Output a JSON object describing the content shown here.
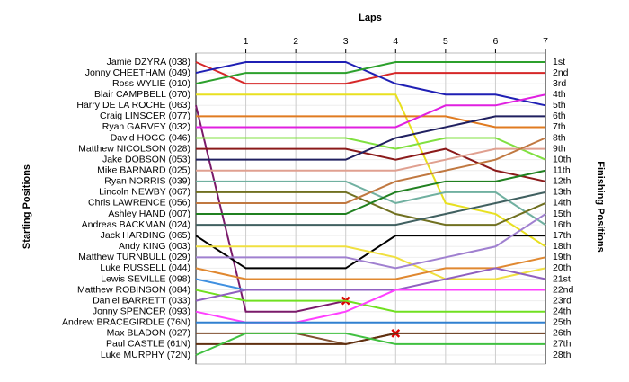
{
  "chart_data": {
    "type": "line",
    "title": "Laps",
    "y_label_left": "Starting Positions",
    "y_label_right": "Finishing Positions",
    "x": [
      0,
      1,
      2,
      3,
      4,
      5,
      6,
      7
    ],
    "xlim": [
      0,
      7
    ],
    "xticks": [
      1,
      2,
      3,
      4,
      5,
      6,
      7
    ],
    "ylim": [
      1,
      28
    ],
    "invert_y": true,
    "grid": true,
    "finish_labels": [
      "1st",
      "2nd",
      "3rd",
      "4th",
      "5th",
      "6th",
      "7th",
      "8th",
      "9th",
      "10th",
      "11th",
      "12th",
      "13th",
      "14th",
      "15th",
      "16th",
      "17th",
      "18th",
      "19th",
      "20th",
      "21st",
      "22nd",
      "23rd",
      "24th",
      "25th",
      "26th",
      "27th",
      "28th"
    ],
    "series": [
      {
        "name": "Jamie DZYRA (038)",
        "color": "#d62728",
        "values": [
          1,
          3,
          3,
          3,
          2,
          2,
          2,
          2
        ]
      },
      {
        "name": "Jonny CHEETHAM (049)",
        "color": "#1f1fb4",
        "values": [
          2,
          1,
          1,
          1,
          3,
          4,
          4,
          5
        ]
      },
      {
        "name": "Ross WYLIE (010)",
        "color": "#2ca02c",
        "values": [
          3,
          2,
          2,
          2,
          1,
          1,
          1,
          1
        ]
      },
      {
        "name": "Blair CAMPBELL (070)",
        "color": "#e8e020",
        "values": [
          4,
          4,
          4,
          4,
          4,
          14,
          15,
          18
        ]
      },
      {
        "name": "Harry DE LA ROCHE (063)",
        "color": "#7a1a6a",
        "values": [
          5,
          24,
          24,
          23,
          null,
          null,
          null,
          null
        ]
      },
      {
        "name": "Craig LINSCER (077)",
        "color": "#e07b20",
        "values": [
          6,
          6,
          6,
          6,
          6,
          6,
          7,
          7
        ]
      },
      {
        "name": "Ryan GARVEY (032)",
        "color": "#e020e0",
        "values": [
          7,
          7,
          7,
          7,
          7,
          5,
          5,
          4
        ]
      },
      {
        "name": "David HOGG (046)",
        "color": "#80e040",
        "values": [
          8,
          8,
          8,
          8,
          9,
          8,
          8,
          10
        ]
      },
      {
        "name": "Matthew NICOLSON (028)",
        "color": "#8b1a1a",
        "values": [
          9,
          9,
          9,
          9,
          10,
          9,
          11,
          12
        ]
      },
      {
        "name": "Jake DOBSON (053)",
        "color": "#202060",
        "values": [
          10,
          10,
          10,
          10,
          8,
          7,
          6,
          6
        ]
      },
      {
        "name": "Mike BARNARD (025)",
        "color": "#e0a090",
        "values": [
          11,
          11,
          11,
          11,
          11,
          10,
          9,
          9
        ]
      },
      {
        "name": "Ryan NORRIS (039)",
        "color": "#70b0a0",
        "values": [
          12,
          12,
          12,
          12,
          14,
          13,
          13,
          16
        ]
      },
      {
        "name": "Lincoln NEWBY (067)",
        "color": "#707020",
        "values": [
          13,
          13,
          13,
          13,
          15,
          16,
          16,
          14
        ]
      },
      {
        "name": "Chris LAWRENCE (056)",
        "color": "#c07840",
        "values": [
          14,
          14,
          14,
          14,
          12,
          11,
          10,
          8
        ]
      },
      {
        "name": "Ashley HAND (007)",
        "color": "#208020",
        "values": [
          15,
          15,
          15,
          15,
          13,
          12,
          12,
          11
        ]
      },
      {
        "name": "Andreas BACKMAN (024)",
        "color": "#406060",
        "values": [
          16,
          16,
          16,
          16,
          16,
          15,
          14,
          13
        ]
      },
      {
        "name": "Jack HARDING (065)",
        "color": "#000000",
        "values": [
          17,
          20,
          20,
          20,
          17,
          17,
          17,
          17
        ]
      },
      {
        "name": "Andy KING (003)",
        "color": "#f0e040",
        "values": [
          18,
          18,
          18,
          18,
          19,
          21,
          21,
          20
        ]
      },
      {
        "name": "Matthew TURNBULL (029)",
        "color": "#a080d0",
        "values": [
          19,
          19,
          19,
          19,
          20,
          19,
          18,
          15
        ]
      },
      {
        "name": "Luke RUSSELL (044)",
        "color": "#e08830",
        "values": [
          20,
          21,
          21,
          21,
          21,
          20,
          20,
          19
        ]
      },
      {
        "name": "Lewis SEVILLE (098)",
        "color": "#4090e0",
        "values": [
          21,
          22,
          22,
          22,
          22,
          22,
          22,
          22
        ]
      },
      {
        "name": "Matthew ROBINSON (084)",
        "color": "#70e020",
        "values": [
          22,
          23,
          23,
          23,
          24,
          24,
          24,
          24
        ]
      },
      {
        "name": "Daniel BARRETT (033)",
        "color": "#9060c0",
        "values": [
          23,
          22,
          22,
          22,
          22,
          21,
          20,
          21
        ]
      },
      {
        "name": "Jonny SPENCER (093)",
        "color": "#ff40ff",
        "values": [
          24,
          25,
          25,
          24,
          22,
          22,
          22,
          22
        ]
      },
      {
        "name": "Andrew BRACEGIRDLE (76N)",
        "color": "#3080d0",
        "values": [
          25,
          25,
          25,
          25,
          25,
          25,
          25,
          25
        ]
      },
      {
        "name": "Max BLADON (027)",
        "color": "#805030",
        "values": [
          26,
          26,
          26,
          27,
          26,
          null,
          null,
          null
        ]
      },
      {
        "name": "Paul CASTLE (61N)",
        "color": "#603010",
        "values": [
          27,
          27,
          27,
          27,
          26,
          26,
          26,
          26
        ]
      },
      {
        "name": "Luke MURPHY (72N)",
        "color": "#40c040",
        "values": [
          28,
          26,
          26,
          26,
          27,
          27,
          27,
          27
        ]
      }
    ]
  }
}
